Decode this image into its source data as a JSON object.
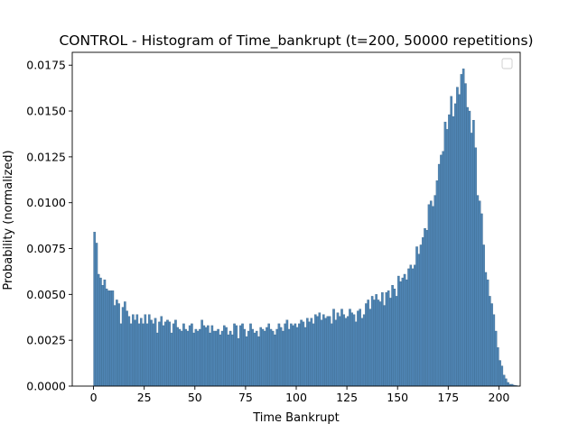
{
  "chart_data": {
    "type": "bar",
    "title": "CONTROL - Histogram of Time_bankrupt (t=200, 50000 repetitions)",
    "xlabel": "Time Bankrupt",
    "ylabel": "Probability (normalized)",
    "xlim": [
      -10.5,
      210.5
    ],
    "ylim": [
      0,
      0.0182
    ],
    "xticks": [
      0,
      25,
      50,
      75,
      100,
      125,
      150,
      175,
      200
    ],
    "xtick_labels": [
      "0",
      "25",
      "50",
      "75",
      "100",
      "125",
      "150",
      "175",
      "200"
    ],
    "yticks": [
      0,
      0.0025,
      0.005,
      0.0075,
      0.01,
      0.0125,
      0.015,
      0.0175
    ],
    "ytick_labels": [
      "0.0000",
      "0.0025",
      "0.0050",
      "0.0075",
      "0.0100",
      "0.0125",
      "0.0150",
      "0.0175"
    ],
    "bar_color": "#4f85b4",
    "bar_edge_color": "#3a6589",
    "legend": {
      "position": "top-right",
      "entries": []
    },
    "bin_width": 1,
    "bins_start": 0,
    "values": [
      0.0084,
      0.0078,
      0.0061,
      0.0059,
      0.0055,
      0.0058,
      0.0053,
      0.0052,
      0.0052,
      0.0052,
      0.0044,
      0.0047,
      0.0045,
      0.0034,
      0.0043,
      0.0046,
      0.0041,
      0.0038,
      0.0034,
      0.0039,
      0.0036,
      0.0039,
      0.0034,
      0.0037,
      0.0034,
      0.0039,
      0.0034,
      0.0039,
      0.0036,
      0.0034,
      0.0037,
      0.0029,
      0.0035,
      0.0038,
      0.0033,
      0.0035,
      0.0036,
      0.0035,
      0.0029,
      0.0034,
      0.0036,
      0.0032,
      0.0031,
      0.003,
      0.0034,
      0.0031,
      0.003,
      0.0033,
      0.0034,
      0.0029,
      0.0031,
      0.003,
      0.0031,
      0.0036,
      0.0033,
      0.0032,
      0.0033,
      0.0029,
      0.0033,
      0.003,
      0.003,
      0.0031,
      0.0028,
      0.003,
      0.0033,
      0.0032,
      0.0028,
      0.003,
      0.0028,
      0.0034,
      0.0033,
      0.0026,
      0.0033,
      0.0034,
      0.0031,
      0.0027,
      0.003,
      0.0034,
      0.0031,
      0.0029,
      0.003,
      0.0027,
      0.0032,
      0.0031,
      0.003,
      0.0032,
      0.0034,
      0.0031,
      0.003,
      0.0028,
      0.0031,
      0.0034,
      0.0032,
      0.003,
      0.0034,
      0.0036,
      0.0031,
      0.0034,
      0.0033,
      0.0034,
      0.0032,
      0.0034,
      0.0036,
      0.0035,
      0.0032,
      0.0037,
      0.0035,
      0.0037,
      0.0034,
      0.0039,
      0.0038,
      0.004,
      0.0036,
      0.0039,
      0.0037,
      0.0038,
      0.0038,
      0.0034,
      0.0042,
      0.0036,
      0.004,
      0.0038,
      0.0042,
      0.0039,
      0.0037,
      0.0038,
      0.0042,
      0.004,
      0.0039,
      0.0035,
      0.0041,
      0.0042,
      0.0037,
      0.0039,
      0.0045,
      0.0047,
      0.0042,
      0.0049,
      0.0047,
      0.005,
      0.0047,
      0.0046,
      0.0051,
      0.0044,
      0.0051,
      0.0052,
      0.0048,
      0.0055,
      0.0053,
      0.0049,
      0.006,
      0.0057,
      0.0059,
      0.0061,
      0.0058,
      0.0064,
      0.0066,
      0.0064,
      0.0066,
      0.0076,
      0.0072,
      0.0077,
      0.0081,
      0.0086,
      0.0085,
      0.0099,
      0.0101,
      0.0098,
      0.0104,
      0.0112,
      0.0121,
      0.0126,
      0.0128,
      0.0144,
      0.014,
      0.0148,
      0.0158,
      0.0147,
      0.0154,
      0.0163,
      0.0159,
      0.017,
      0.0173,
      0.0165,
      0.0152,
      0.015,
      0.0138,
      0.0145,
      0.013,
      0.0104,
      0.0101,
      0.0094,
      0.0077,
      0.0062,
      0.0058,
      0.0049,
      0.0045,
      0.0039,
      0.003,
      0.0021,
      0.0014,
      0.0011,
      0.0006,
      0.0004,
      0.0002,
      0.0001,
      0.0001,
      5e-05,
      3e-05,
      1e-05
    ]
  }
}
